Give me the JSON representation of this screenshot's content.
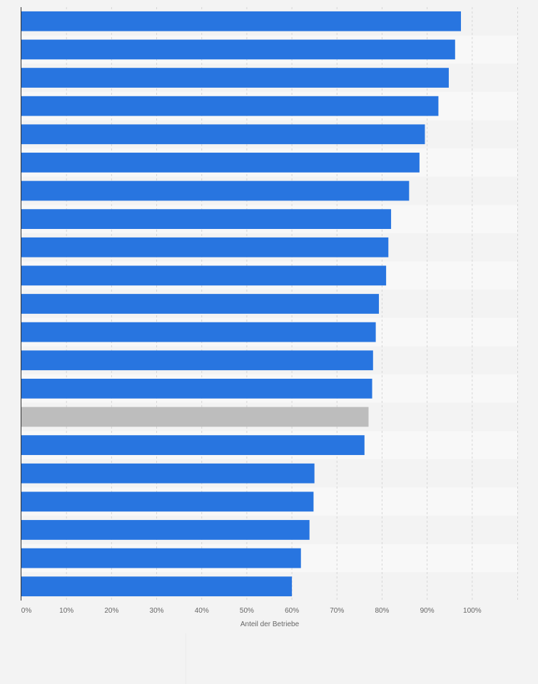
{
  "chart_data": {
    "type": "bar",
    "orientation": "horizontal",
    "xlabel": "Anteil der Betriebe",
    "ylabel": "",
    "xlim": [
      0,
      110
    ],
    "x_ticks": [
      "0%",
      "10%",
      "20%",
      "30%",
      "40%",
      "50%",
      "60%",
      "70%",
      "80%",
      "90%",
      "100%"
    ],
    "grid": true,
    "values": [
      97.5,
      96.2,
      94.8,
      92.5,
      89.5,
      88.3,
      86.0,
      82.0,
      81.4,
      80.9,
      79.3,
      78.6,
      78.0,
      77.8,
      77.0,
      76.1,
      65.0,
      64.8,
      63.9,
      62.0,
      60.0
    ],
    "bar_colors": [
      "#2875e0",
      "#2875e0",
      "#2875e0",
      "#2875e0",
      "#2875e0",
      "#2875e0",
      "#2875e0",
      "#2875e0",
      "#2875e0",
      "#2875e0",
      "#2875e0",
      "#2875e0",
      "#2875e0",
      "#2875e0",
      "#bdbdbd",
      "#2875e0",
      "#2875e0",
      "#2875e0",
      "#2875e0",
      "#2875e0",
      "#2875e0"
    ],
    "accent_color": "#2875e0",
    "highlight_color": "#bdbdbd"
  }
}
